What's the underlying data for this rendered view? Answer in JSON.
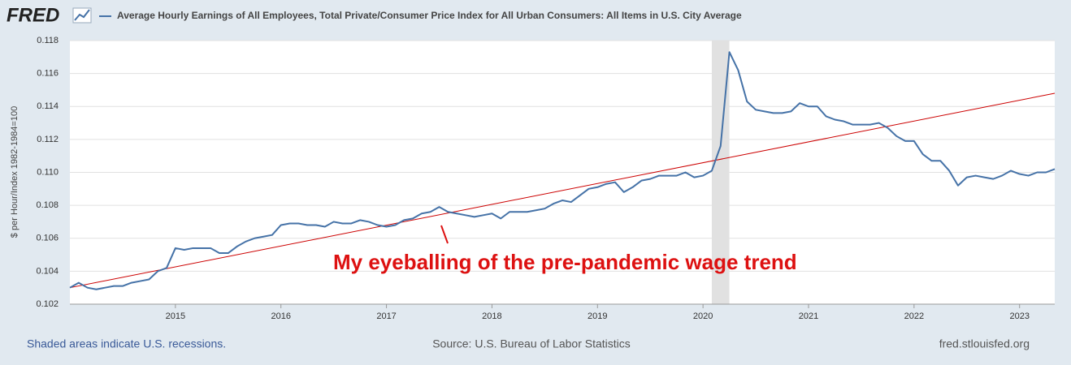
{
  "chart_data": {
    "type": "line",
    "logo": "FRED",
    "ylabel": "$ per Hour/Index 1982-1984=100",
    "annotation": "My eyeballing of the pre-pandemic wage trend",
    "recession_note": "Shaded areas indicate U.S. recessions.",
    "source": "Source: U.S. Bureau of Labor Statistics",
    "site": "fred.stlouisfed.org",
    "x": [
      "2014-01",
      "2014-02",
      "2014-03",
      "2014-04",
      "2014-05",
      "2014-06",
      "2014-07",
      "2014-08",
      "2014-09",
      "2014-10",
      "2014-11",
      "2014-12",
      "2015-01",
      "2015-02",
      "2015-03",
      "2015-04",
      "2015-05",
      "2015-06",
      "2015-07",
      "2015-08",
      "2015-09",
      "2015-10",
      "2015-11",
      "2015-12",
      "2016-01",
      "2016-02",
      "2016-03",
      "2016-04",
      "2016-05",
      "2016-06",
      "2016-07",
      "2016-08",
      "2016-09",
      "2016-10",
      "2016-11",
      "2016-12",
      "2017-01",
      "2017-02",
      "2017-03",
      "2017-04",
      "2017-05",
      "2017-06",
      "2017-07",
      "2017-08",
      "2017-09",
      "2017-10",
      "2017-11",
      "2017-12",
      "2018-01",
      "2018-02",
      "2018-03",
      "2018-04",
      "2018-05",
      "2018-06",
      "2018-07",
      "2018-08",
      "2018-09",
      "2018-10",
      "2018-11",
      "2018-12",
      "2019-01",
      "2019-02",
      "2019-03",
      "2019-04",
      "2019-05",
      "2019-06",
      "2019-07",
      "2019-08",
      "2019-09",
      "2019-10",
      "2019-11",
      "2019-12",
      "2020-01",
      "2020-02",
      "2020-03",
      "2020-04",
      "2020-05",
      "2020-06",
      "2020-07",
      "2020-08",
      "2020-09",
      "2020-10",
      "2020-11",
      "2020-12",
      "2021-01",
      "2021-02",
      "2021-03",
      "2021-04",
      "2021-05",
      "2021-06",
      "2021-07",
      "2021-08",
      "2021-09",
      "2021-10",
      "2021-11",
      "2021-12",
      "2022-01",
      "2022-02",
      "2022-03",
      "2022-04",
      "2022-05",
      "2022-06",
      "2022-07",
      "2022-08",
      "2022-09",
      "2022-10",
      "2022-11",
      "2022-12",
      "2023-01",
      "2023-02",
      "2023-03",
      "2023-04",
      "2023-05"
    ],
    "series": [
      {
        "name": "Average Hourly Earnings of All Employees, Total Private/Consumer Price Index for All Urban Consumers: All Items in U.S. City Average",
        "color": "#4572a7",
        "values": [
          0.103,
          0.1033,
          0.103,
          0.1029,
          0.103,
          0.1031,
          0.1031,
          0.1033,
          0.1034,
          0.1035,
          0.104,
          0.1042,
          0.1054,
          0.1053,
          0.1054,
          0.1054,
          0.1054,
          0.1051,
          0.1051,
          0.1055,
          0.1058,
          0.106,
          0.1061,
          0.1062,
          0.1068,
          0.1069,
          0.1069,
          0.1068,
          0.1068,
          0.1067,
          0.107,
          0.1069,
          0.1069,
          0.1071,
          0.107,
          0.1068,
          0.1067,
          0.1068,
          0.1071,
          0.1072,
          0.1075,
          0.1076,
          0.1079,
          0.1076,
          0.1075,
          0.1074,
          0.1073,
          0.1074,
          0.1075,
          0.1072,
          0.1076,
          0.1076,
          0.1076,
          0.1077,
          0.1078,
          0.1081,
          0.1083,
          0.1082,
          0.1086,
          0.109,
          0.1091,
          0.1093,
          0.1094,
          0.1088,
          0.1091,
          0.1095,
          0.1096,
          0.1098,
          0.1098,
          0.1098,
          0.11,
          0.1097,
          0.1098,
          0.1101,
          0.1116,
          0.1173,
          0.1162,
          0.1143,
          0.1138,
          0.1137,
          0.1136,
          0.1136,
          0.1137,
          0.1142,
          0.114,
          0.114,
          0.1134,
          0.1132,
          0.1131,
          0.1129,
          0.1129,
          0.1129,
          0.113,
          0.1127,
          0.1122,
          0.1119,
          0.1119,
          0.1111,
          0.1107,
          0.1107,
          0.1101,
          0.1092,
          0.1097,
          0.1098,
          0.1097,
          0.1096,
          0.1098,
          0.1101,
          0.1099,
          0.1098,
          0.11,
          0.11,
          0.1102
        ]
      }
    ],
    "trend": {
      "color": "#cc0000",
      "x": [
        "2014-01",
        "2023-05"
      ],
      "values": [
        0.103,
        0.1148
      ]
    },
    "recessions": [
      [
        "2020-02",
        "2020-04"
      ]
    ],
    "recession_color": "#e1e1e1",
    "xlim": [
      "2014-01",
      "2023-05"
    ],
    "xticks": [
      "2015",
      "2016",
      "2017",
      "2018",
      "2019",
      "2020",
      "2021",
      "2022",
      "2023"
    ],
    "ylim": [
      0.102,
      0.118
    ],
    "yticks": [
      0.102,
      0.104,
      0.106,
      0.108,
      {
        "value": 0.11,
        "label": "0.110"
      },
      0.112,
      0.114,
      0.116,
      0.118
    ],
    "grid": true
  }
}
